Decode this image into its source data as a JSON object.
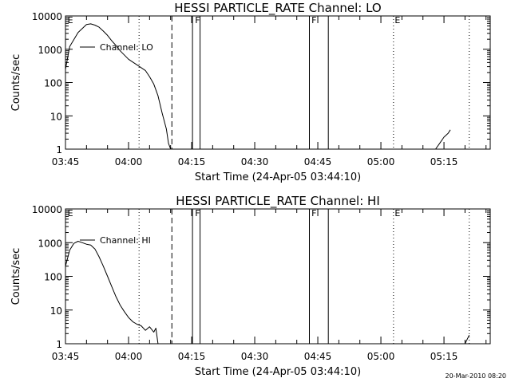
{
  "footer": {
    "timestamp": "20-Mar-2010 08:20"
  },
  "chart_data": [
    {
      "type": "line",
      "title": "HESSI PARTICLE_RATE Channel: LO",
      "xlabel": "Start Time (24-Apr-05 03:44:10)",
      "ylabel": "Counts/sec",
      "yscale": "log",
      "xlim": [
        "03:45",
        "05:26"
      ],
      "ylim": [
        1,
        10000
      ],
      "x_ticks": [
        "03:45",
        "04:00",
        "04:15",
        "04:30",
        "04:45",
        "05:00",
        "05:15"
      ],
      "y_ticks": [
        "1",
        "10",
        "100",
        "1000",
        "10000"
      ],
      "legend": {
        "label": "Channel: LO",
        "placement": "top-left"
      },
      "series": [
        {
          "x": [
            "03:45",
            "03:46",
            "03:48",
            "03:50",
            "03:51",
            "03:52",
            "03:53",
            "03:54",
            "03:55",
            "03:56",
            "03:57",
            "03:58",
            "04:00",
            "04:02",
            "04:04",
            "04:05",
            "04:06",
            "04:07",
            "04:08",
            "04:09",
            "04:09.5",
            "04:10"
          ],
          "y": [
            250,
            1200,
            3200,
            5500,
            5800,
            5300,
            4600,
            3500,
            2600,
            1800,
            1300,
            900,
            500,
            340,
            230,
            150,
            90,
            40,
            12,
            4,
            1.5,
            1
          ]
        },
        {
          "x": [
            "05:13",
            "05:14",
            "05:15",
            "05:16",
            "05:16.5"
          ],
          "y": [
            1,
            1.5,
            2.3,
            3.0,
            3.8
          ]
        }
      ],
      "vlines": [
        {
          "x": "04:02.5",
          "style": "dotted"
        },
        {
          "x": "04:10.3",
          "style": "dashed"
        },
        {
          "x": "04:15.2",
          "style": "solid"
        },
        {
          "x": "04:17",
          "style": "solid"
        },
        {
          "x": "04:43",
          "style": "solid"
        },
        {
          "x": "04:47.5",
          "style": "solid"
        },
        {
          "x": "05:03",
          "style": "dotted"
        },
        {
          "x": "05:21",
          "style": "dotted"
        }
      ],
      "markers": [
        {
          "label": "E",
          "x": "03:45.5"
        },
        {
          "label": "F",
          "x": "04:15.8"
        },
        {
          "label": "F",
          "x": "04:43.5"
        },
        {
          "label": "E",
          "x": "05:03.3"
        }
      ]
    },
    {
      "type": "line",
      "title": "HESSI PARTICLE_RATE Channel: HI",
      "xlabel": "Start Time (24-Apr-05 03:44:10)",
      "ylabel": "Counts/sec",
      "yscale": "log",
      "xlim": [
        "03:45",
        "05:26"
      ],
      "ylim": [
        1,
        10000
      ],
      "x_ticks": [
        "03:45",
        "04:00",
        "04:15",
        "04:30",
        "04:45",
        "05:00",
        "05:15"
      ],
      "y_ticks": [
        "1",
        "10",
        "100",
        "1000",
        "10000"
      ],
      "legend": {
        "label": "Channel: HI",
        "placement": "top-left"
      },
      "series": [
        {
          "x": [
            "03:45",
            "03:46",
            "03:47",
            "03:48",
            "03:49",
            "03:50",
            "03:51",
            "03:52",
            "03:53",
            "03:54",
            "03:55",
            "03:56",
            "03:57",
            "03:58",
            "03:59",
            "04:00",
            "04:01",
            "04:02",
            "04:03",
            "04:04",
            "04:05",
            "04:06",
            "04:06.5",
            "04:07"
          ],
          "y": [
            200,
            600,
            950,
            1100,
            1000,
            900,
            850,
            650,
            380,
            200,
            100,
            50,
            25,
            14,
            9,
            6,
            4.5,
            3.8,
            3.4,
            2.5,
            3.2,
            2.2,
            2.9,
            1
          ]
        },
        {
          "x": [
            "05:20",
            "05:21"
          ],
          "y": [
            1,
            1.8
          ]
        }
      ],
      "vlines": [
        {
          "x": "04:02.5",
          "style": "dotted"
        },
        {
          "x": "04:10.3",
          "style": "dashed"
        },
        {
          "x": "04:15.2",
          "style": "solid"
        },
        {
          "x": "04:17",
          "style": "solid"
        },
        {
          "x": "04:43",
          "style": "solid"
        },
        {
          "x": "04:47.5",
          "style": "solid"
        },
        {
          "x": "05:03",
          "style": "dotted"
        },
        {
          "x": "05:21",
          "style": "dotted"
        }
      ],
      "markers": [
        {
          "label": "E",
          "x": "03:45.5"
        },
        {
          "label": "F",
          "x": "04:15.8"
        },
        {
          "label": "F",
          "x": "04:43.5"
        },
        {
          "label": "E",
          "x": "05:03.3"
        }
      ]
    }
  ]
}
